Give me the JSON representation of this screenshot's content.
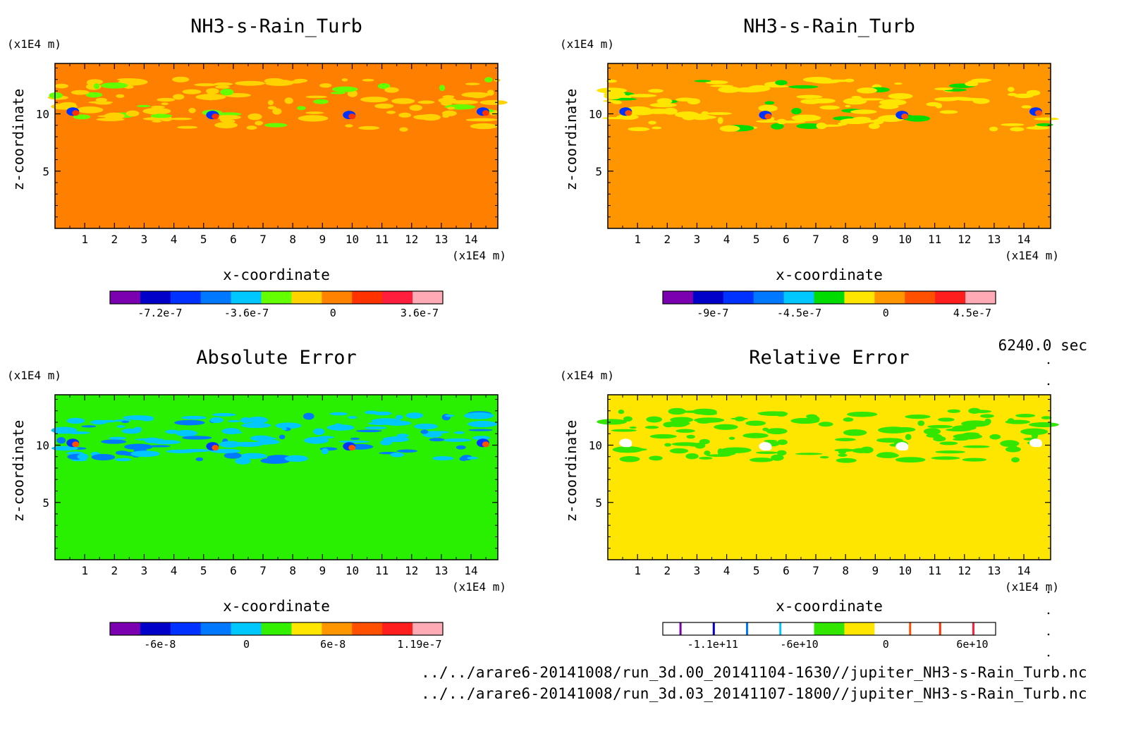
{
  "figure": {
    "time_label": "6240.0 sec",
    "footer_lines": [
      "../../arare6-20141008/run_3d.00_20141104-1630//jupiter_NH3-s-Rain_Turb.nc",
      "../../arare6-20141008/run_3d.03_20141107-1800//jupiter_NH3-s-Rain_Turb.nc"
    ]
  },
  "chart_data": [
    {
      "type": "heatmap",
      "title": "NH3-s-Rain_Turb",
      "xlabel": "x-coordinate",
      "ylabel": "z-coordinate",
      "x_unit": "(x1E4 m)",
      "y_unit": "(x1E4 m)",
      "xlim": [
        0,
        14.9
      ],
      "ylim": [
        0,
        14.4
      ],
      "x_ticks": [
        "1",
        "2",
        "3",
        "4",
        "5",
        "6",
        "7",
        "8",
        "9",
        "10",
        "11",
        "12",
        "13",
        "14"
      ],
      "y_ticks": [
        "5",
        "10"
      ],
      "background_color": "#ff7f00",
      "colorbar": {
        "colors": [
          "#7a00b0",
          "#0000c8",
          "#0032ff",
          "#0078ff",
          "#00c8ff",
          "#64ff00",
          "#ffd200",
          "#ff8200",
          "#ff3200",
          "#ff1e3c",
          "#ffaab4"
        ],
        "tick_labels": [
          "-7.2e-7",
          "-3.6e-7",
          "0",
          "3.6e-7"
        ]
      }
    },
    {
      "type": "heatmap",
      "title": "NH3-s-Rain_Turb",
      "xlabel": "x-coordinate",
      "ylabel": "z-coordinate",
      "x_unit": "(x1E4 m)",
      "y_unit": "(x1E4 m)",
      "xlim": [
        0,
        14.9
      ],
      "ylim": [
        0,
        14.4
      ],
      "x_ticks": [
        "1",
        "2",
        "3",
        "4",
        "5",
        "6",
        "7",
        "8",
        "9",
        "10",
        "11",
        "12",
        "13",
        "14"
      ],
      "y_ticks": [
        "5",
        "10"
      ],
      "background_color": "#ff9600",
      "colorbar": {
        "colors": [
          "#7a00b0",
          "#0000c8",
          "#0032ff",
          "#0078ff",
          "#00c8ff",
          "#00dc00",
          "#ffe600",
          "#ff9600",
          "#ff5000",
          "#ff1e1e",
          "#ffaab4"
        ],
        "tick_labels": [
          "-9e-7",
          "-4.5e-7",
          "0",
          "4.5e-7"
        ]
      }
    },
    {
      "type": "heatmap",
      "title": "Absolute Error",
      "xlabel": "x-coordinate",
      "ylabel": "z-coordinate",
      "x_unit": "(x1E4 m)",
      "y_unit": "(x1E4 m)",
      "xlim": [
        0,
        14.9
      ],
      "ylim": [
        0,
        14.4
      ],
      "x_ticks": [
        "1",
        "2",
        "3",
        "4",
        "5",
        "6",
        "7",
        "8",
        "9",
        "10",
        "11",
        "12",
        "13",
        "14"
      ],
      "y_ticks": [
        "5",
        "10"
      ],
      "background_color": "#28f000",
      "colorbar": {
        "colors": [
          "#7a00b0",
          "#0000c8",
          "#0032ff",
          "#0078ff",
          "#00c8ff",
          "#32f000",
          "#ffe600",
          "#ff9600",
          "#ff5000",
          "#ff1e1e",
          "#ffaab4"
        ],
        "tick_labels": [
          "-6e-8",
          "0",
          "6e-8",
          "1.19e-7"
        ]
      }
    },
    {
      "type": "heatmap",
      "title": "Relative Error",
      "xlabel": "x-coordinate",
      "ylabel": "z-coordinate",
      "x_unit": "(x1E4 m)",
      "y_unit": "(x1E4 m)",
      "xlim": [
        0,
        14.9
      ],
      "ylim": [
        0,
        14.4
      ],
      "x_ticks": [
        "1",
        "2",
        "3",
        "4",
        "5",
        "6",
        "7",
        "8",
        "9",
        "10",
        "11",
        "12",
        "13",
        "14"
      ],
      "y_ticks": [
        "5",
        "10"
      ],
      "background_color": "#ffe600",
      "colorbar": {
        "colors": [
          "#ffffff",
          "#ffffff",
          "#ffffff",
          "#ffffff",
          "#ffffff",
          "#32e600",
          "#ffe600",
          "#ffffff",
          "#ffffff",
          "#ffffff",
          "#ffffff"
        ],
        "tick_labels": [
          "-1.1e+11",
          "-6e+10",
          "0",
          "6e+10"
        ]
      }
    }
  ]
}
